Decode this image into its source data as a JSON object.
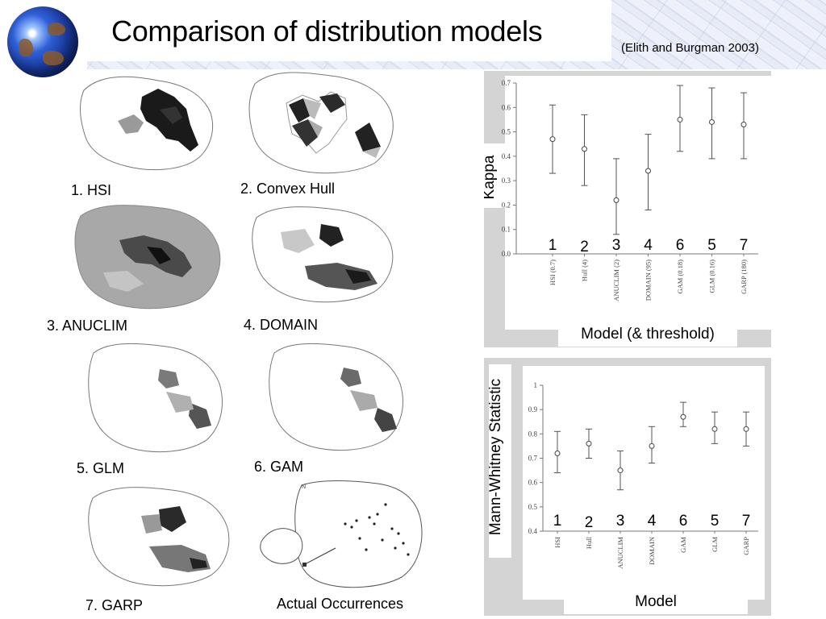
{
  "slide": {
    "title": "Comparison of distribution models",
    "citation": "(Elith and Burgman 2003)"
  },
  "maps": [
    {
      "label": "1. HSI"
    },
    {
      "label": "2. Convex Hull"
    },
    {
      "label": "3. ANUCLIM"
    },
    {
      "label": "4. DOMAIN"
    },
    {
      "label": "5. GLM"
    },
    {
      "label": "6. GAM"
    },
    {
      "label": "7. GARP"
    },
    {
      "label": "Actual Occurrences"
    }
  ],
  "chart_data": [
    {
      "type": "scatter",
      "ylabel": "Kappa",
      "xlabel": "Model (& threshold)",
      "ylim": [
        0.0,
        0.7
      ],
      "yticks": [
        "0.0",
        "0.1",
        "0.2",
        "0.3",
        "0.4",
        "0.5",
        "0.6",
        "0.7"
      ],
      "categories": [
        "HSI (0.7)",
        "Hull (4)",
        "ANUCLIM (2)",
        "DOMAIN (95)",
        "GAM (0.18)",
        "GLM (0.16)",
        "GARP (180)"
      ],
      "values": [
        0.47,
        0.43,
        0.22,
        0.34,
        0.55,
        0.54,
        0.53
      ],
      "lower": [
        0.33,
        0.28,
        0.08,
        0.18,
        0.42,
        0.39,
        0.39
      ],
      "upper": [
        0.61,
        0.57,
        0.39,
        0.49,
        0.69,
        0.68,
        0.66
      ],
      "rank_labels": [
        "1",
        "2",
        "3",
        "4",
        "6",
        "5",
        "7"
      ]
    },
    {
      "type": "scatter",
      "ylabel": "Mann-Whitney Statistic",
      "xlabel": "Model",
      "ylim": [
        0.4,
        1.0
      ],
      "yticks": [
        "0.4",
        "0.5",
        "0.6",
        "0.7",
        "0.8",
        "0.9",
        "1"
      ],
      "categories": [
        "HSI",
        "Hull",
        "ANUCLIM",
        "DOMAIN",
        "GAM",
        "GLM",
        "GARP"
      ],
      "values": [
        0.72,
        0.76,
        0.65,
        0.75,
        0.87,
        0.82,
        0.82
      ],
      "lower": [
        0.64,
        0.7,
        0.57,
        0.68,
        0.83,
        0.76,
        0.75
      ],
      "upper": [
        0.81,
        0.82,
        0.73,
        0.83,
        0.93,
        0.89,
        0.89
      ],
      "rank_labels": [
        "1",
        "2",
        "3",
        "4",
        "6",
        "5",
        "7"
      ]
    }
  ]
}
